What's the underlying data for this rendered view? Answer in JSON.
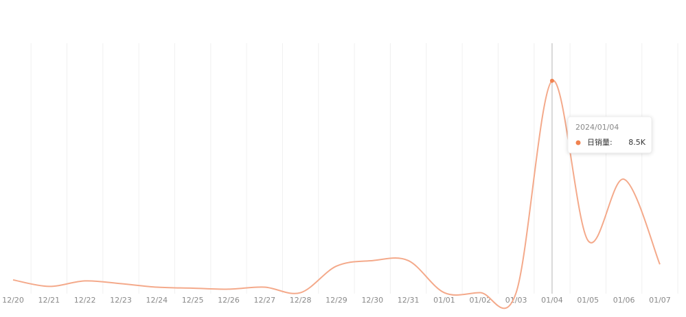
{
  "chart_data": {
    "type": "line",
    "categories": [
      "12/20",
      "12/21",
      "12/22",
      "12/23",
      "12/24",
      "12/25",
      "12/26",
      "12/27",
      "12/28",
      "12/29",
      "12/30",
      "12/31",
      "01/01",
      "01/02",
      "01/03",
      "01/04",
      "01/05",
      "01/06",
      "01/07"
    ],
    "values": [
      550,
      290,
      510,
      400,
      260,
      220,
      180,
      260,
      40,
      1100,
      1320,
      1320,
      40,
      40,
      40,
      8500,
      2120,
      4570,
      1170
    ],
    "color": "#f4a98a",
    "ylim": [
      0,
      10000
    ],
    "grid": true,
    "tooltip": {
      "date": "2024/01/04",
      "label": "日销量:",
      "value_label": "8.5K"
    }
  }
}
